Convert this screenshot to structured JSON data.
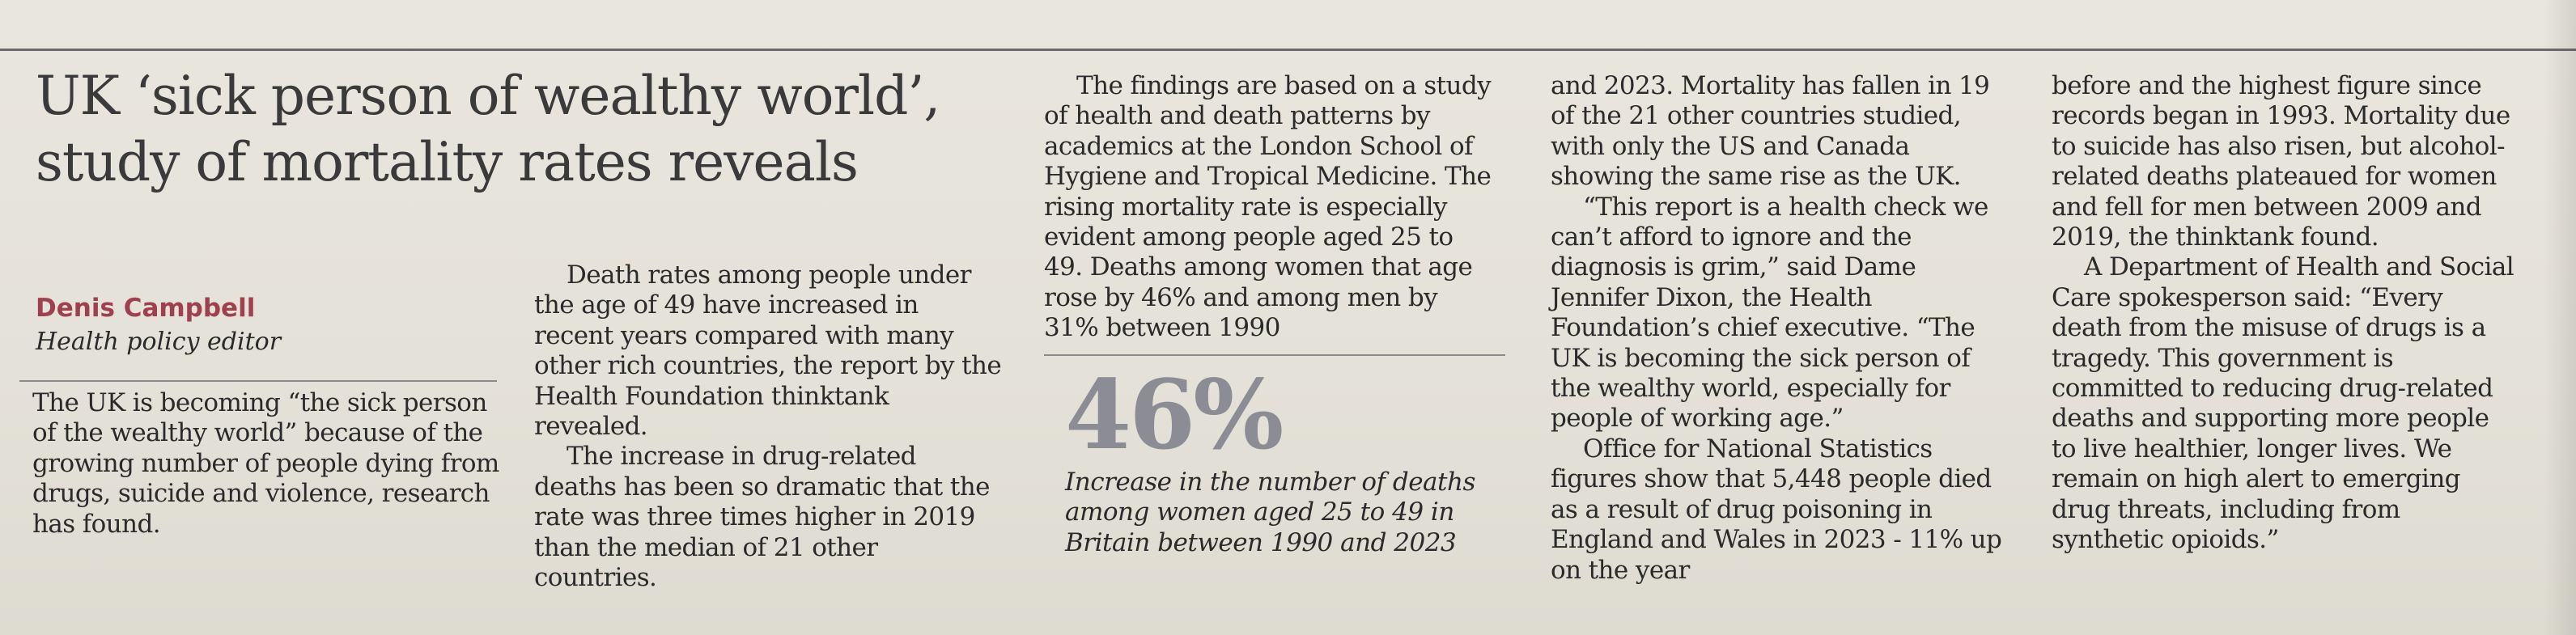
{
  "headline": "UK ‘sick person of wealthy world’, study of mortality rates reveals",
  "byline": {
    "author": "Denis Campbell",
    "role": "Health policy editor"
  },
  "col1": [
    "The UK is becoming “the sick person of the wealthy world” because of the growing number of people dying from drugs, suicide and violence, research has found."
  ],
  "col2": [
    "Death rates among people under the age of 49 have increased in recent years compared with many other rich countries, the report by the Health Foundation thinktank revealed.",
    "The increase in drug-related deaths has been so dramatic that the rate was three times higher in 2019 than the median of 21 other countries."
  ],
  "col3": [
    "The findings are based on a study of health and death patterns by academics at the London School of Hygiene and Tropical Medicine. The rising mortality rate is especially evident among people aged 25 to 49. Deaths among women that age rose by 46% and among men by 31% between 1990"
  ],
  "pullquote": {
    "stat": "46%",
    "caption": "Increase in the number of deaths among women aged 25 to 49 in Britain between 1990 and 2023"
  },
  "col4": [
    "and 2023. Mortality has fallen in 19 of the 21 other countries studied, with only the US and Canada showing the same rise as the UK.",
    "“This report is a health check we can’t afford to ignore and the diagnosis is grim,” said Dame Jennifer Dixon, the Health Foundation’s chief executive. “The UK is becoming the sick person of the wealthy world, especially for people of working age.”",
    "Office for National Statistics figures show that 5,448 people died as a result of drug poisoning in England and Wales in 2023 - 11% up on the year"
  ],
  "col5": [
    "before and the highest figure since records began in 1993. Mortality due to suicide has also risen, but alcohol-related deaths plateaued for women and fell for men between 2009 and 2019, the thinktank found.",
    "A Department of Health and Social Care spokesperson said: “Every death from the misuse of drugs is a tragedy. This government is committed to reducing drug-related deaths and supporting more people to live healthier, longer lives. We remain on high alert to emerging drug threats, including from synthetic opioids.”"
  ]
}
